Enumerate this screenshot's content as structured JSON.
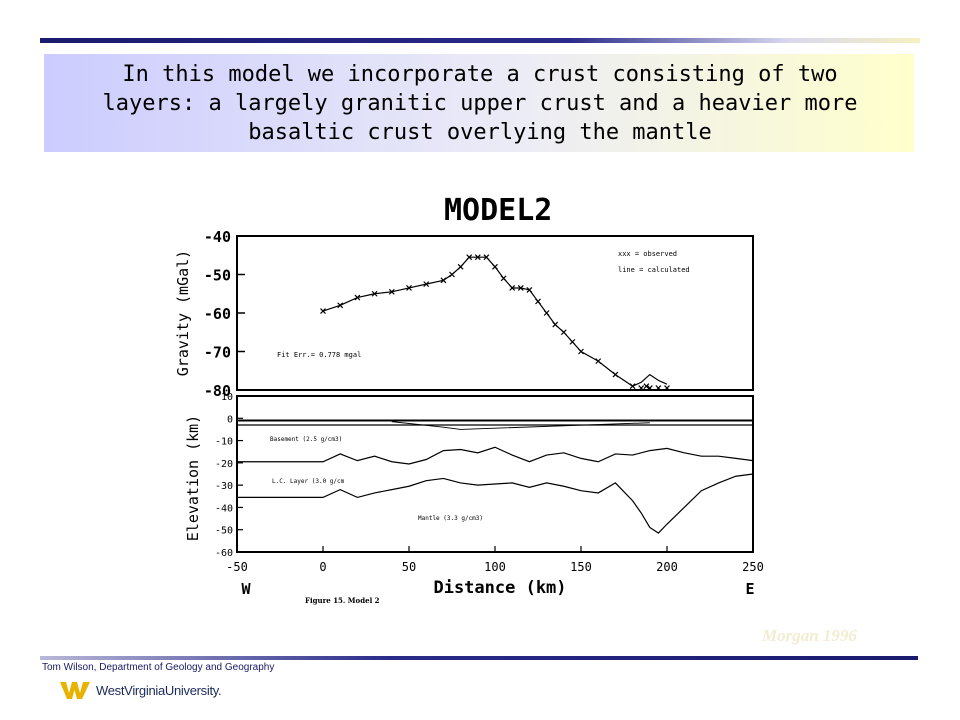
{
  "slide": {
    "title": "In this model we incorporate a crust consisting of two layers: a largely granitic upper crust and a heavier more basaltic crust overlying the mantle",
    "credit": "Morgan 1996",
    "footer": "Tom Wilson, Department of Geology and Geography",
    "logo_text": "WestVirginiaUniversity."
  },
  "chart_data": [
    {
      "type": "line",
      "title": "MODEL2",
      "ylabel": "Gravity (mGal)",
      "ylim": [
        -80,
        -40
      ],
      "yticks": [
        -40,
        -50,
        -60,
        -70,
        -80
      ],
      "xlim": [
        -50,
        250
      ],
      "legend": [
        "xxx = observed",
        "line = calculated"
      ],
      "legend_position": "top-right",
      "annotation": "Fit Err.= 0.778 mgal",
      "series": [
        {
          "name": "observed",
          "x": [
            0,
            10,
            20,
            30,
            40,
            50,
            60,
            70,
            75,
            80,
            85,
            90,
            95,
            100,
            105,
            110,
            115,
            120,
            125,
            130,
            135,
            140,
            145,
            150,
            160,
            170,
            180,
            185,
            188,
            190,
            195,
            200
          ],
          "y": [
            -59.5,
            -58,
            -56,
            -55,
            -54.5,
            -53.5,
            -52.5,
            -51.5,
            -50,
            -48,
            -45.5,
            -45.5,
            -45.5,
            -48,
            -51,
            -53.5,
            -53.5,
            -54,
            -57,
            -60,
            -63,
            -65,
            -67.5,
            -70,
            -72.5,
            -76,
            -79,
            -79.5,
            -79,
            -79.5,
            -79.5,
            -79.5
          ]
        },
        {
          "name": "calculated",
          "x": [
            0,
            10,
            20,
            30,
            40,
            50,
            60,
            70,
            75,
            80,
            85,
            90,
            95,
            100,
            105,
            110,
            115,
            120,
            125,
            130,
            135,
            140,
            145,
            150,
            160,
            170,
            180,
            185,
            190,
            195,
            200
          ],
          "y": [
            -59.5,
            -58,
            -56,
            -55,
            -54.5,
            -53.5,
            -52.5,
            -51.5,
            -50,
            -48,
            -45.5,
            -45.5,
            -45.5,
            -48,
            -51,
            -53.5,
            -53.5,
            -54,
            -57,
            -60,
            -63,
            -65,
            -67.5,
            -70,
            -72.5,
            -76,
            -79,
            -78,
            -76,
            -77.5,
            -78.5
          ]
        }
      ]
    },
    {
      "type": "line",
      "xlabel": "Distance (km)",
      "ylabel": "Elevation (km)",
      "xlim": [
        -50,
        250
      ],
      "ylim": [
        -60,
        10
      ],
      "xticks": [
        -50,
        0,
        50,
        100,
        150,
        200,
        250
      ],
      "yticks": [
        10,
        0,
        -10,
        -20,
        -30,
        -40,
        -50,
        -60
      ],
      "x_end_labels": [
        "W",
        "E"
      ],
      "caption": "Figure 15. Model 2",
      "layer_labels": [
        "Basement (2.5 g/cm3)",
        "L.C. Layer (3.0 g/cm",
        "Mantle (3.3 g/cm3)"
      ],
      "series": [
        {
          "name": "surface",
          "x": [
            -50,
            250
          ],
          "y": [
            -1,
            -1
          ]
        },
        {
          "name": "upper-crust base",
          "x": [
            -50,
            -10,
            0,
            10,
            20,
            30,
            40,
            50,
            60,
            70,
            80,
            90,
            100,
            110,
            120,
            130,
            140,
            150,
            160,
            170,
            180,
            190,
            200,
            210,
            220,
            230,
            240,
            250
          ],
          "y": [
            -19.5,
            -19.5,
            -19.5,
            -16,
            -19,
            -17,
            -19.5,
            -20.5,
            -18.5,
            -14.5,
            -14,
            -15.5,
            -13,
            -16.5,
            -19.5,
            -16.5,
            -15.5,
            -18,
            -19.5,
            -16,
            -16.5,
            -14.5,
            -13.5,
            -15.5,
            -17,
            -17,
            -18,
            -19
          ]
        },
        {
          "name": "Moho",
          "x": [
            -50,
            -10,
            0,
            10,
            20,
            30,
            40,
            50,
            60,
            70,
            80,
            90,
            100,
            110,
            120,
            130,
            140,
            150,
            160,
            170,
            180,
            185,
            190,
            195,
            200,
            210,
            220,
            230,
            240,
            250
          ],
          "y": [
            -35.5,
            -35.5,
            -35.5,
            -32,
            -35.5,
            -33.5,
            -32,
            -30.5,
            -28,
            -27,
            -29,
            -30,
            -29.5,
            -29,
            -31,
            -29,
            -30.5,
            -32.5,
            -33.5,
            -29,
            -37,
            -42.5,
            -49,
            -51.5,
            -47.5,
            -40,
            -32.5,
            -29,
            -26,
            -25
          ]
        }
      ]
    }
  ]
}
